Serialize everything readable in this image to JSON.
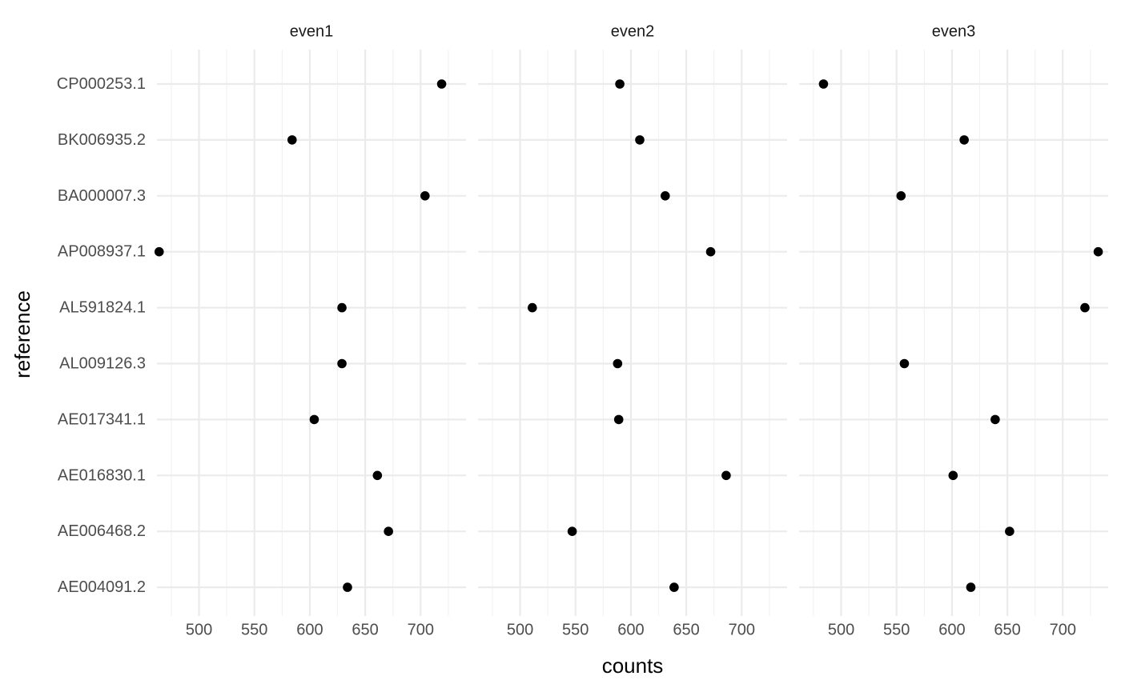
{
  "chart_data": {
    "type": "scatter",
    "xlabel": "counts",
    "ylabel": "reference",
    "xlim": [
      462,
      741
    ],
    "x_ticks": [
      500,
      550,
      600,
      650,
      700
    ],
    "grid": true,
    "categories": [
      "CP000253.1",
      "BK006935.2",
      "BA000007.3",
      "AP008937.1",
      "AL591824.1",
      "AL009126.3",
      "AE017341.1",
      "AE016830.1",
      "AE006468.2",
      "AE004091.2"
    ],
    "panels": [
      {
        "name": "even1",
        "values": [
          719,
          584,
          704,
          464,
          629,
          629,
          604,
          661,
          671,
          634
        ]
      },
      {
        "name": "even2",
        "values": [
          590,
          608,
          631,
          672,
          511,
          588,
          589,
          686,
          547,
          639
        ]
      },
      {
        "name": "even3",
        "values": [
          484,
          611,
          554,
          732,
          720,
          557,
          639,
          601,
          652,
          617
        ]
      }
    ]
  }
}
